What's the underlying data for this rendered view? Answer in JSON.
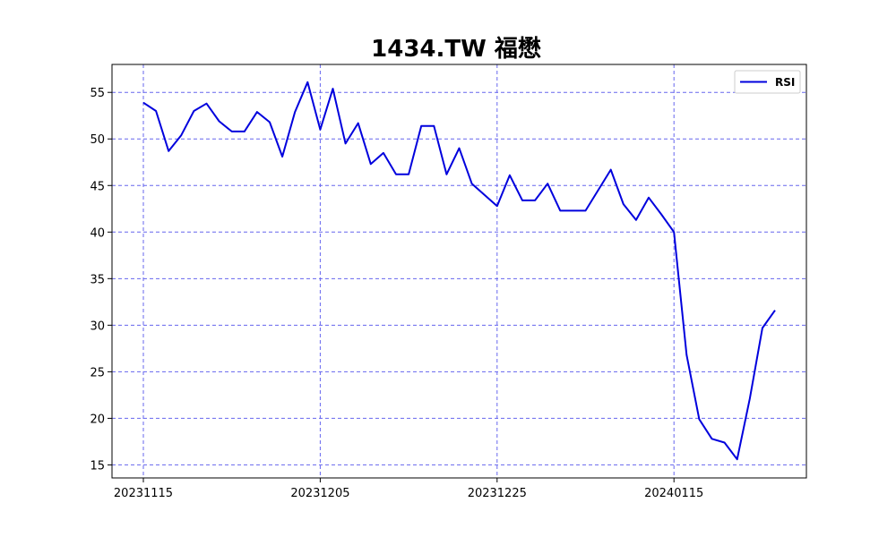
{
  "chart_data": {
    "type": "line",
    "title": "1434.TW 福懋",
    "xlabel": "",
    "ylabel": "",
    "x_tick_labels": [
      "20231115",
      "20231205",
      "20231225",
      "20240115"
    ],
    "y_ticks": [
      15,
      20,
      25,
      30,
      35,
      40,
      45,
      50,
      55
    ],
    "ylim": [
      13.6,
      58.0
    ],
    "grid": true,
    "legend_position": "top-right",
    "colors": {
      "line": "#0000dd",
      "grid": "#6666ee"
    },
    "series": [
      {
        "name": "RSI",
        "values": [
          53.9,
          53.0,
          48.7,
          50.4,
          53.0,
          53.8,
          51.9,
          50.8,
          50.8,
          52.9,
          51.8,
          48.1,
          52.9,
          56.1,
          51.0,
          55.4,
          49.5,
          51.7,
          47.3,
          48.5,
          46.2,
          46.2,
          51.4,
          51.4,
          46.2,
          49.0,
          45.2,
          44.0,
          42.8,
          46.1,
          43.4,
          43.4,
          45.2,
          42.3,
          42.3,
          42.3,
          44.5,
          46.7,
          43.0,
          41.3,
          43.7,
          41.9,
          40.0,
          26.8,
          19.9,
          17.8,
          17.4,
          15.6,
          22.1,
          29.7,
          31.6
        ]
      }
    ]
  }
}
